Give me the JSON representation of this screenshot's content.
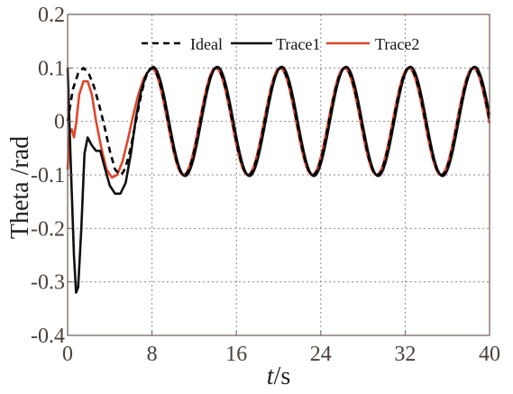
{
  "chart_data": {
    "type": "line",
    "title": "",
    "xlabel": "t/s",
    "xlabel_italic": "t",
    "xlabel_unit": "/s",
    "ylabel": "Theta /rad",
    "xlim": [
      0,
      40
    ],
    "ylim": [
      -0.4,
      0.2
    ],
    "xticks": [
      0,
      8,
      16,
      24,
      32,
      40
    ],
    "xtick_labels": [
      "0",
      "8",
      "16",
      "24",
      "32",
      "40"
    ],
    "yticks": [
      0.2,
      0.1,
      0,
      -0.1,
      -0.2,
      -0.3,
      -0.4
    ],
    "ytick_labels": [
      "0.2",
      "0.1",
      "0",
      "-0.1",
      "-0.2",
      "-0.3",
      "-0.4"
    ],
    "grid": true,
    "legend_position": "top",
    "series": [
      {
        "name": "Ideal",
        "color": "#000000",
        "dash": "dashed",
        "points": [
          [
            0,
            0
          ],
          [
            0.5,
            0.06
          ],
          [
            1.0,
            0.09
          ],
          [
            1.5,
            0.1
          ],
          [
            2.0,
            0.09
          ],
          [
            2.5,
            0.065
          ],
          [
            3.0,
            0.03
          ],
          [
            3.5,
            -0.01
          ],
          [
            4.0,
            -0.055
          ],
          [
            4.5,
            -0.09
          ],
          [
            5.0,
            -0.1
          ]
        ]
      },
      {
        "name": "Trace1",
        "color": "#111111",
        "dash": "solid",
        "points": [
          [
            0,
            0.1
          ],
          [
            0.3,
            -0.08
          ],
          [
            0.6,
            -0.25
          ],
          [
            0.8,
            -0.32
          ],
          [
            1.0,
            -0.31
          ],
          [
            1.3,
            -0.2
          ],
          [
            1.6,
            -0.06
          ],
          [
            1.9,
            -0.03
          ],
          [
            2.3,
            -0.045
          ],
          [
            2.7,
            -0.055
          ],
          [
            3.1,
            -0.055
          ],
          [
            3.5,
            -0.085
          ],
          [
            4.0,
            -0.12
          ],
          [
            4.5,
            -0.135
          ],
          [
            5.0,
            -0.135
          ],
          [
            5.5,
            -0.115
          ],
          [
            6.0,
            -0.06
          ],
          [
            6.5,
            0.01
          ],
          [
            7.0,
            0.06
          ],
          [
            7.5,
            0.09
          ],
          [
            8.0,
            0.1
          ]
        ]
      },
      {
        "name": "Trace2",
        "color": "#e0462b",
        "dash": "solid",
        "points": [
          [
            0,
            -0.09
          ],
          [
            0.2,
            -0.02
          ],
          [
            0.4,
            -0.015
          ],
          [
            0.6,
            -0.03
          ],
          [
            0.8,
            -0.005
          ],
          [
            1.1,
            0.05
          ],
          [
            1.5,
            0.075
          ],
          [
            1.9,
            0.075
          ],
          [
            2.3,
            0.05
          ],
          [
            2.7,
            0.0
          ],
          [
            3.2,
            -0.05
          ],
          [
            3.7,
            -0.09
          ],
          [
            4.2,
            -0.105
          ],
          [
            4.7,
            -0.1
          ],
          [
            5.2,
            -0.075
          ],
          [
            5.7,
            -0.035
          ],
          [
            6.2,
            0.01
          ],
          [
            6.7,
            0.05
          ],
          [
            7.2,
            0.08
          ],
          [
            7.7,
            0.095
          ],
          [
            8.0,
            0.1
          ]
        ]
      }
    ],
    "steady_state": {
      "amplitude": 0.1,
      "period": 6.1,
      "peak_at": 8.0,
      "x_start": 8.0,
      "x_end": 40.0
    }
  }
}
